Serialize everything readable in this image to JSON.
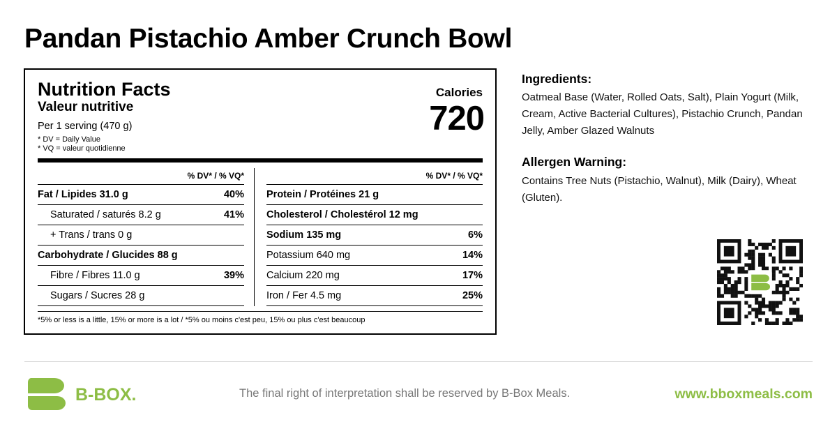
{
  "title": "Pandan Pistachio Amber Crunch Bowl",
  "nutrition": {
    "heading": "Nutrition Facts",
    "heading_fr": "Valeur nutritive",
    "serving": "Per 1 serving (470 g)",
    "note_dv": "* DV = Daily Value",
    "note_vq": "* VQ = valeur quotidienne",
    "calories_label": "Calories",
    "calories": 720,
    "dv_header_left": "% DV* / % VQ*",
    "dv_header_right": "% DV* / % VQ*",
    "left_rows": [
      {
        "label": "Fat / Lipides 31.0 g",
        "dv": "40%"
      },
      {
        "label": "Saturated / saturés 8.2 g",
        "dv": "41%"
      },
      {
        "label": "+ Trans / trans 0 g"
      },
      {
        "label": "Carbohydrate / Glucides 88 g"
      },
      {
        "label": "Fibre / Fibres 11.0 g",
        "dv": "39%"
      },
      {
        "label": "Sugars / Sucres 28 g"
      }
    ],
    "right_rows": [
      {
        "label": "Protein / Protéines 21 g"
      },
      {
        "label": "Cholesterol / Cholestérol 12 mg"
      },
      {
        "label": "Sodium 135 mg",
        "dv": "6%"
      },
      {
        "label": "Potassium 640 mg",
        "dv": "14%"
      },
      {
        "label": "Calcium 220 mg",
        "dv": "17%"
      },
      {
        "label": "Iron / Fer 4.5 mg",
        "dv": "25%"
      }
    ],
    "footnote": "*5% or less is a little, 15% or more is a lot / *5% ou moins c'est peu, 15% ou plus c'est beaucoup"
  },
  "ingredients": {
    "heading": "Ingredients:",
    "text": "Oatmeal Base (Water, Rolled Oats, Salt), Plain Yogurt (Milk, Cream, Active Bacterial Cultures), Pistachio Crunch, Pandan Jelly, Amber Glazed Walnuts"
  },
  "allergen": {
    "heading": "Allergen Warning:",
    "text": "Contains Tree Nuts (Pistachio, Walnut), Milk (Dairy), Wheat (Gluten)."
  },
  "footer": {
    "brand": "B-BOX.",
    "disclaimer": "The final right of interpretation shall be reserved by B-Box Meals.",
    "url": "www.bboxmeals.com"
  }
}
